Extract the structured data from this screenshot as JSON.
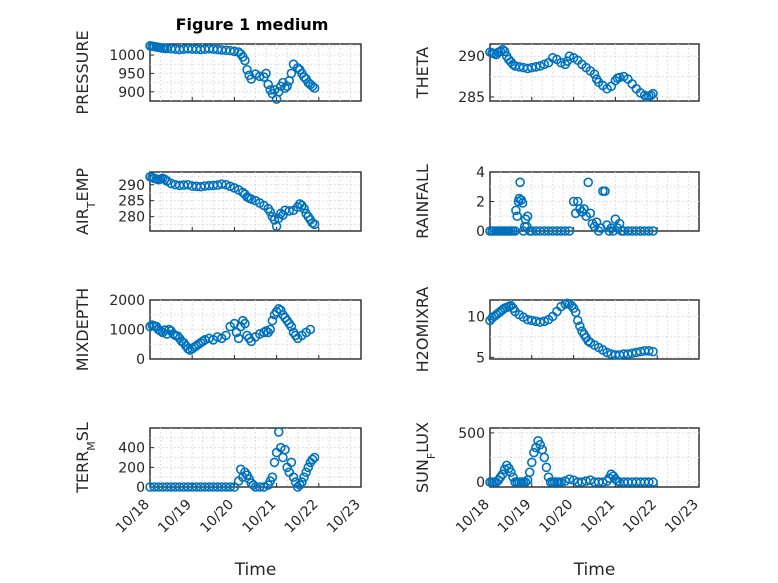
{
  "figure_title": "Figure 1 medium",
  "marker_color": "#0072BD",
  "chart_data": [
    {
      "type": "scatter",
      "ylabel": "PRESSURE",
      "xlabel": "",
      "xlim": [
        0,
        5
      ],
      "ylim": [
        875,
        1030
      ],
      "yticks": [
        900,
        950,
        1000
      ],
      "xticks": [
        0,
        1,
        2,
        3,
        4,
        5
      ],
      "x": [
        0.0,
        0.05,
        0.1,
        0.15,
        0.2,
        0.25,
        0.3,
        0.35,
        0.4,
        0.5,
        0.6,
        0.7,
        0.8,
        0.9,
        1.0,
        1.1,
        1.2,
        1.3,
        1.4,
        1.5,
        1.6,
        1.7,
        1.8,
        1.9,
        2.0,
        2.1,
        2.15,
        2.2,
        2.25,
        2.3,
        2.35,
        2.4,
        2.5,
        2.6,
        2.7,
        2.75,
        2.8,
        2.85,
        2.9,
        2.95,
        3.0,
        3.05,
        3.1,
        3.15,
        3.2,
        3.25,
        3.3,
        3.35,
        3.4,
        3.5,
        3.55,
        3.6,
        3.65,
        3.7,
        3.75,
        3.8,
        3.85,
        3.9
      ],
      "y": [
        1025,
        1024,
        1023,
        1022,
        1021,
        1020,
        1019,
        1018,
        1018,
        1017,
        1016,
        1015,
        1016,
        1017,
        1016,
        1016,
        1015,
        1016,
        1017,
        1016,
        1015,
        1014,
        1013,
        1012,
        1010,
        1008,
        1003,
        995,
        985,
        960,
        945,
        935,
        948,
        942,
        940,
        950,
        920,
        905,
        895,
        905,
        880,
        900,
        915,
        925,
        910,
        915,
        930,
        950,
        975,
        965,
        960,
        950,
        940,
        935,
        925,
        920,
        915,
        910
      ]
    },
    {
      "type": "scatter",
      "ylabel": "THETA",
      "xlabel": "",
      "xlim": [
        0,
        5
      ],
      "ylim": [
        284.5,
        291.5
      ],
      "yticks": [
        285,
        290
      ],
      "xticks": [
        0,
        1,
        2,
        3,
        4,
        5
      ],
      "x": [
        0.0,
        0.05,
        0.1,
        0.15,
        0.2,
        0.25,
        0.3,
        0.35,
        0.4,
        0.45,
        0.5,
        0.55,
        0.6,
        0.7,
        0.8,
        0.9,
        1.0,
        1.1,
        1.2,
        1.3,
        1.4,
        1.5,
        1.6,
        1.7,
        1.8,
        1.85,
        1.9,
        2.0,
        2.1,
        2.2,
        2.3,
        2.4,
        2.5,
        2.55,
        2.6,
        2.7,
        2.8,
        2.9,
        3.0,
        3.05,
        3.1,
        3.2,
        3.3,
        3.4,
        3.5,
        3.6,
        3.7,
        3.75,
        3.8,
        3.85,
        3.9
      ],
      "y": [
        290.5,
        290.4,
        290.3,
        290.2,
        290.5,
        290.6,
        290.8,
        290.6,
        290.0,
        289.6,
        289.3,
        289.0,
        288.8,
        288.7,
        288.6,
        288.5,
        288.6,
        288.7,
        288.8,
        289.0,
        289.2,
        289.8,
        289.6,
        289.2,
        289.0,
        289.4,
        290.0,
        289.8,
        289.5,
        289.0,
        288.6,
        288.2,
        287.8,
        287.2,
        286.8,
        286.4,
        286.0,
        286.3,
        287.0,
        287.3,
        287.4,
        287.5,
        287.2,
        286.6,
        286.0,
        285.5,
        285.2,
        285.0,
        285.1,
        285.2,
        285.4
      ]
    },
    {
      "type": "scatter",
      "ylabel": "AIR_TEMP",
      "xlabel": "",
      "xlim": [
        0,
        5
      ],
      "ylim": [
        275.5,
        294
      ],
      "yticks": [
        280,
        285,
        290
      ],
      "xticks": [
        0,
        1,
        2,
        3,
        4,
        5
      ],
      "x": [
        0.0,
        0.05,
        0.1,
        0.15,
        0.2,
        0.25,
        0.3,
        0.35,
        0.4,
        0.5,
        0.6,
        0.7,
        0.8,
        0.9,
        1.0,
        1.1,
        1.2,
        1.3,
        1.4,
        1.5,
        1.6,
        1.7,
        1.8,
        1.9,
        2.0,
        2.1,
        2.2,
        2.25,
        2.3,
        2.35,
        2.4,
        2.5,
        2.6,
        2.7,
        2.8,
        2.85,
        2.9,
        2.95,
        3.0,
        3.05,
        3.1,
        3.15,
        3.2,
        3.3,
        3.4,
        3.5,
        3.55,
        3.6,
        3.65,
        3.7,
        3.75,
        3.8,
        3.85,
        3.9
      ],
      "y": [
        292.5,
        292.3,
        292.0,
        291.8,
        291.6,
        291.8,
        292.0,
        291.7,
        291.2,
        290.4,
        290.0,
        289.8,
        289.9,
        290.0,
        289.6,
        289.5,
        289.4,
        289.6,
        289.7,
        289.8,
        289.9,
        290.2,
        290.0,
        289.5,
        289.0,
        288.4,
        287.6,
        287.0,
        286.2,
        285.8,
        285.5,
        285.0,
        284.3,
        283.5,
        282.5,
        281.5,
        280.0,
        279.0,
        277.0,
        279.5,
        281.0,
        280.5,
        282.0,
        281.8,
        282.0,
        283.0,
        284.0,
        283.5,
        282.5,
        281.0,
        280.0,
        279.0,
        278.0,
        277.6
      ]
    },
    {
      "type": "scatter",
      "ylabel": "RAINFALL",
      "xlabel": "",
      "xlim": [
        0,
        5
      ],
      "ylim": [
        0,
        4
      ],
      "yticks": [
        0,
        2,
        4
      ],
      "xticks": [
        0,
        1,
        2,
        3,
        4,
        5
      ],
      "x": [
        0.0,
        0.05,
        0.1,
        0.15,
        0.2,
        0.25,
        0.3,
        0.35,
        0.4,
        0.45,
        0.5,
        0.55,
        0.6,
        0.62,
        0.65,
        0.68,
        0.7,
        0.72,
        0.75,
        0.78,
        0.8,
        0.83,
        0.85,
        0.88,
        0.9,
        0.95,
        1.0,
        1.1,
        1.2,
        1.3,
        1.4,
        1.5,
        1.6,
        1.7,
        1.8,
        1.9,
        2.0,
        2.05,
        2.1,
        2.15,
        2.2,
        2.25,
        2.3,
        2.35,
        2.4,
        2.45,
        2.5,
        2.55,
        2.6,
        2.65,
        2.7,
        2.75,
        2.8,
        2.85,
        2.9,
        2.95,
        3.0,
        3.05,
        3.1,
        3.15,
        3.2,
        3.3,
        3.4,
        3.5,
        3.6,
        3.7,
        3.8,
        3.9
      ],
      "y": [
        0,
        0,
        0,
        0,
        0,
        0,
        0,
        0,
        0,
        0,
        0,
        0,
        0,
        1.4,
        1.0,
        2.0,
        2.2,
        3.3,
        2.1,
        1.9,
        0,
        0.3,
        0.8,
        0.3,
        1.0,
        0,
        0,
        0,
        0,
        0,
        0,
        0,
        0,
        0,
        0,
        0,
        2.0,
        1.2,
        2.0,
        1.5,
        1.3,
        1.5,
        1.0,
        3.3,
        1.2,
        0.5,
        0.3,
        0.6,
        0,
        0.2,
        2.7,
        2.7,
        0.4,
        0,
        0.2,
        0,
        0.8,
        0.2,
        0.5,
        0,
        0,
        0,
        0,
        0,
        0,
        0,
        0,
        0
      ]
    },
    {
      "type": "scatter",
      "ylabel": "MIXDEPTH",
      "xlabel": "",
      "xlim": [
        0,
        5
      ],
      "ylim": [
        0,
        2000
      ],
      "yticks": [
        0,
        1000,
        2000
      ],
      "xticks": [
        0,
        1,
        2,
        3,
        4,
        5
      ],
      "x": [
        0.0,
        0.05,
        0.1,
        0.15,
        0.2,
        0.25,
        0.3,
        0.35,
        0.4,
        0.45,
        0.5,
        0.55,
        0.6,
        0.65,
        0.7,
        0.75,
        0.8,
        0.85,
        0.9,
        0.95,
        1.0,
        1.05,
        1.1,
        1.15,
        1.2,
        1.25,
        1.3,
        1.4,
        1.5,
        1.6,
        1.7,
        1.8,
        1.9,
        2.0,
        2.05,
        2.1,
        2.15,
        2.2,
        2.25,
        2.3,
        2.35,
        2.4,
        2.5,
        2.6,
        2.7,
        2.75,
        2.8,
        2.85,
        2.9,
        2.95,
        3.0,
        3.05,
        3.1,
        3.15,
        3.2,
        3.25,
        3.3,
        3.35,
        3.4,
        3.45,
        3.5,
        3.6,
        3.7,
        3.8
      ],
      "y": [
        1100,
        1150,
        1120,
        1100,
        1000,
        950,
        900,
        980,
        850,
        1000,
        950,
        850,
        800,
        780,
        700,
        600,
        550,
        450,
        350,
        300,
        350,
        400,
        450,
        500,
        550,
        600,
        650,
        700,
        650,
        750,
        700,
        800,
        1100,
        1200,
        900,
        700,
        1100,
        1300,
        1200,
        800,
        700,
        600,
        750,
        850,
        900,
        950,
        900,
        1000,
        1300,
        1500,
        1600,
        1700,
        1650,
        1500,
        1400,
        1300,
        1200,
        1100,
        900,
        800,
        700,
        800,
        900,
        1000
      ]
    },
    {
      "type": "scatter",
      "ylabel": "H2OMIXRA",
      "xlabel": "",
      "xlim": [
        0,
        5
      ],
      "ylim": [
        4.8,
        12
      ],
      "yticks": [
        5,
        10
      ],
      "xticks": [
        0,
        1,
        2,
        3,
        4,
        5
      ],
      "x": [
        0.0,
        0.05,
        0.1,
        0.15,
        0.2,
        0.25,
        0.3,
        0.35,
        0.4,
        0.45,
        0.5,
        0.55,
        0.6,
        0.7,
        0.8,
        0.9,
        1.0,
        1.1,
        1.2,
        1.3,
        1.4,
        1.5,
        1.6,
        1.7,
        1.8,
        1.85,
        1.9,
        1.95,
        2.0,
        2.05,
        2.1,
        2.15,
        2.2,
        2.25,
        2.3,
        2.35,
        2.4,
        2.5,
        2.6,
        2.7,
        2.8,
        2.9,
        3.0,
        3.1,
        3.2,
        3.3,
        3.4,
        3.5,
        3.6,
        3.7,
        3.8,
        3.9
      ],
      "y": [
        9.5,
        9.8,
        10.0,
        10.2,
        10.4,
        10.6,
        10.8,
        11.0,
        11.1,
        11.2,
        11.3,
        11.0,
        10.6,
        10.2,
        9.9,
        9.6,
        9.5,
        9.4,
        9.3,
        9.4,
        9.6,
        10.0,
        10.6,
        11.2,
        11.5,
        11.6,
        11.5,
        11.3,
        11.0,
        10.5,
        9.5,
        8.8,
        8.2,
        7.8,
        7.4,
        7.0,
        6.8,
        6.5,
        6.2,
        5.9,
        5.6,
        5.4,
        5.3,
        5.3,
        5.4,
        5.4,
        5.5,
        5.6,
        5.7,
        5.8,
        5.8,
        5.7
      ]
    },
    {
      "type": "scatter",
      "ylabel": "TERR_MSL",
      "xlabel": "Time",
      "xlim": [
        0,
        5
      ],
      "ylim": [
        0,
        600
      ],
      "yticks": [
        0,
        200,
        400
      ],
      "xticks": [
        0,
        1,
        2,
        3,
        4,
        5
      ],
      "xticklabels": [
        "10/18",
        "10/19",
        "10/20",
        "10/21",
        "10/22",
        "10/23"
      ],
      "x": [
        0.0,
        0.1,
        0.2,
        0.3,
        0.4,
        0.5,
        0.6,
        0.7,
        0.8,
        0.9,
        1.0,
        1.1,
        1.2,
        1.3,
        1.4,
        1.5,
        1.6,
        1.7,
        1.8,
        1.9,
        2.0,
        2.1,
        2.15,
        2.2,
        2.25,
        2.3,
        2.35,
        2.4,
        2.45,
        2.5,
        2.6,
        2.7,
        2.8,
        2.85,
        2.9,
        2.95,
        3.0,
        3.05,
        3.1,
        3.15,
        3.2,
        3.25,
        3.3,
        3.35,
        3.4,
        3.45,
        3.5,
        3.55,
        3.6,
        3.65,
        3.7,
        3.75,
        3.8,
        3.85,
        3.9
      ],
      "y": [
        0,
        0,
        0,
        0,
        0,
        0,
        0,
        0,
        0,
        0,
        0,
        0,
        0,
        0,
        0,
        0,
        0,
        0,
        0,
        0,
        0,
        60,
        180,
        100,
        150,
        120,
        80,
        40,
        20,
        0,
        0,
        0,
        20,
        60,
        100,
        250,
        350,
        560,
        400,
        300,
        380,
        200,
        150,
        250,
        100,
        50,
        0,
        20,
        50,
        100,
        150,
        200,
        250,
        280,
        300
      ]
    },
    {
      "type": "scatter",
      "ylabel": "SUN_FLUX",
      "xlabel": "Time",
      "xlim": [
        0,
        5
      ],
      "ylim": [
        -50,
        550
      ],
      "yticks": [
        0,
        500
      ],
      "xticks": [
        0,
        1,
        2,
        3,
        4,
        5
      ],
      "xticklabels": [
        "10/18",
        "10/19",
        "10/20",
        "10/21",
        "10/22",
        "10/23"
      ],
      "x": [
        0.0,
        0.05,
        0.1,
        0.15,
        0.2,
        0.25,
        0.3,
        0.35,
        0.4,
        0.45,
        0.5,
        0.55,
        0.6,
        0.65,
        0.7,
        0.75,
        0.8,
        0.85,
        0.9,
        0.95,
        1.0,
        1.05,
        1.1,
        1.15,
        1.2,
        1.25,
        1.3,
        1.35,
        1.4,
        1.45,
        1.5,
        1.55,
        1.6,
        1.65,
        1.7,
        1.8,
        1.9,
        2.0,
        2.1,
        2.2,
        2.3,
        2.4,
        2.5,
        2.6,
        2.7,
        2.8,
        2.85,
        2.9,
        2.95,
        3.0,
        3.05,
        3.1,
        3.2,
        3.3,
        3.4,
        3.5,
        3.6,
        3.7,
        3.8,
        3.9
      ],
      "y": [
        0,
        0,
        0,
        0,
        20,
        50,
        80,
        130,
        170,
        140,
        100,
        50,
        0,
        0,
        0,
        0,
        0,
        0,
        20,
        100,
        200,
        300,
        350,
        420,
        380,
        330,
        250,
        150,
        50,
        0,
        0,
        0,
        0,
        0,
        0,
        10,
        30,
        20,
        0,
        0,
        10,
        20,
        0,
        0,
        0,
        10,
        40,
        80,
        60,
        30,
        10,
        0,
        0,
        0,
        0,
        0,
        0,
        0,
        0,
        0
      ]
    }
  ]
}
